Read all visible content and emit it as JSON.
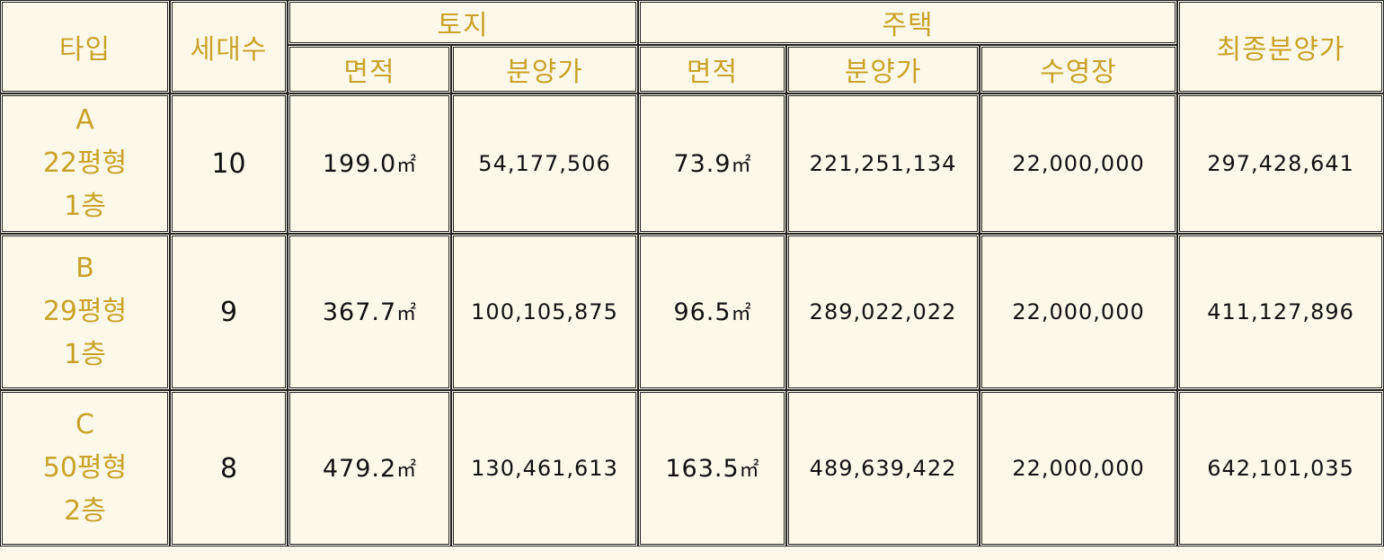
{
  "header": {
    "type": "타입",
    "units": "세대수",
    "land": "토지",
    "house": "주택",
    "final_price": "최종분양가",
    "land_area": "면적",
    "land_price": "분양가",
    "house_area": "면적",
    "house_price": "분양가",
    "pool": "수영장"
  },
  "unit_symbol": "㎡",
  "rows": [
    {
      "type_letter": "A",
      "type_size": "22평형",
      "type_floor": "1층",
      "units": "10",
      "land_area": "199.0",
      "land_price": "54,177,506",
      "house_area": "73.9",
      "house_price": "221,251,134",
      "pool": "22,000,000",
      "final_price": "297,428,641"
    },
    {
      "type_letter": "B",
      "type_size": "29평형",
      "type_floor": "1층",
      "units": "9",
      "land_area": "367.7",
      "land_price": "100,105,875",
      "house_area": "96.5",
      "house_price": "289,022,022",
      "pool": "22,000,000",
      "final_price": "411,127,896"
    },
    {
      "type_letter": "C",
      "type_size": "50평형",
      "type_floor": "2층",
      "units": "8",
      "land_area": "479.2",
      "land_price": "130,461,613",
      "house_area": "163.5",
      "house_price": "489,639,422",
      "pool": "22,000,000",
      "final_price": "642,101,035"
    }
  ],
  "colors": {
    "header_text": "#c9a227",
    "background": "#fdf9ea",
    "border": "#222222",
    "value_text": "#111111"
  }
}
